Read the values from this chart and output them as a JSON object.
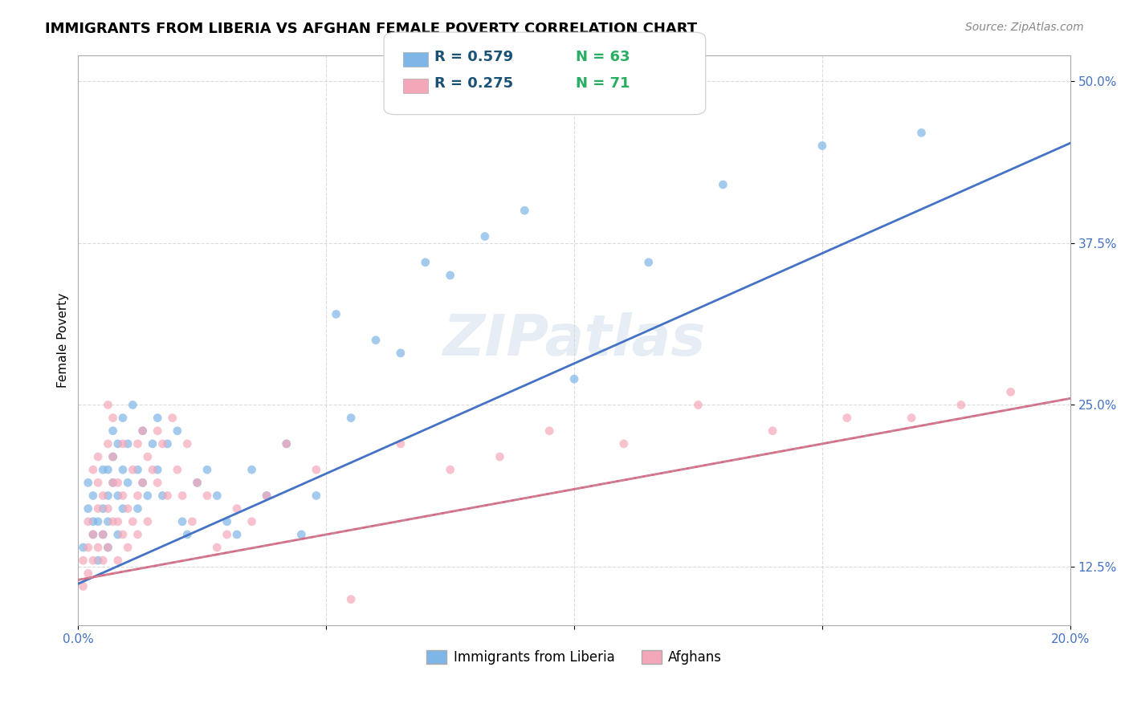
{
  "title": "IMMIGRANTS FROM LIBERIA VS AFGHAN FEMALE POVERTY CORRELATION CHART",
  "source": "Source: ZipAtlas.com",
  "xlabel": "",
  "ylabel": "Female Poverty",
  "watermark": "ZIPatlas",
  "x_min": 0.0,
  "x_max": 0.2,
  "y_min": 0.08,
  "y_max": 0.52,
  "x_ticks": [
    0.0,
    0.05,
    0.1,
    0.15,
    0.2
  ],
  "x_tick_labels": [
    "0.0%",
    "",
    "",
    "",
    "20.0%"
  ],
  "y_ticks": [
    0.125,
    0.25,
    0.375,
    0.5
  ],
  "y_tick_labels": [
    "12.5%",
    "25.0%",
    "37.5%",
    "50.0%"
  ],
  "liberia_color": "#7eb6e8",
  "liberia_color_line": "#4472C4",
  "afghan_color": "#f4a7b9",
  "afghan_color_line": "#E06080",
  "legend_R_liberia": "R = 0.579",
  "legend_N_liberia": "N = 63",
  "legend_R_afghan": "R = 0.275",
  "legend_N_afghan": "N = 71",
  "legend_color_R": "#1a5276",
  "legend_color_N": "#27ae60",
  "liberia_R": 0.579,
  "liberia_N": 63,
  "afghan_R": 0.275,
  "afghan_N": 71,
  "liberia_intercept": 0.112,
  "liberia_slope": 1.7,
  "afghan_intercept": 0.115,
  "afghan_slope": 0.7,
  "background_color": "#ffffff",
  "grid_color": "#cccccc",
  "title_fontsize": 13,
  "axis_label_fontsize": 11,
  "tick_fontsize": 11,
  "source_fontsize": 10,
  "scatter_alpha": 0.7,
  "scatter_size": 60,
  "liberia_x": [
    0.001,
    0.002,
    0.002,
    0.003,
    0.003,
    0.003,
    0.004,
    0.004,
    0.005,
    0.005,
    0.005,
    0.006,
    0.006,
    0.006,
    0.006,
    0.007,
    0.007,
    0.007,
    0.008,
    0.008,
    0.008,
    0.009,
    0.009,
    0.009,
    0.01,
    0.01,
    0.011,
    0.012,
    0.012,
    0.013,
    0.013,
    0.014,
    0.015,
    0.016,
    0.016,
    0.017,
    0.018,
    0.02,
    0.021,
    0.022,
    0.024,
    0.026,
    0.028,
    0.03,
    0.032,
    0.035,
    0.038,
    0.042,
    0.045,
    0.048,
    0.052,
    0.055,
    0.06,
    0.065,
    0.07,
    0.075,
    0.082,
    0.09,
    0.1,
    0.115,
    0.13,
    0.15,
    0.17
  ],
  "liberia_y": [
    0.14,
    0.17,
    0.19,
    0.15,
    0.16,
    0.18,
    0.13,
    0.16,
    0.17,
    0.2,
    0.15,
    0.14,
    0.18,
    0.2,
    0.16,
    0.21,
    0.19,
    0.23,
    0.22,
    0.18,
    0.15,
    0.17,
    0.2,
    0.24,
    0.19,
    0.22,
    0.25,
    0.2,
    0.17,
    0.23,
    0.19,
    0.18,
    0.22,
    0.24,
    0.2,
    0.18,
    0.22,
    0.23,
    0.16,
    0.15,
    0.19,
    0.2,
    0.18,
    0.16,
    0.15,
    0.2,
    0.18,
    0.22,
    0.15,
    0.18,
    0.32,
    0.24,
    0.3,
    0.29,
    0.36,
    0.35,
    0.38,
    0.4,
    0.27,
    0.36,
    0.42,
    0.45,
    0.46
  ],
  "afghan_x": [
    0.001,
    0.001,
    0.002,
    0.002,
    0.002,
    0.003,
    0.003,
    0.003,
    0.004,
    0.004,
    0.004,
    0.004,
    0.005,
    0.005,
    0.005,
    0.006,
    0.006,
    0.006,
    0.006,
    0.007,
    0.007,
    0.007,
    0.007,
    0.008,
    0.008,
    0.008,
    0.009,
    0.009,
    0.009,
    0.01,
    0.01,
    0.011,
    0.011,
    0.012,
    0.012,
    0.012,
    0.013,
    0.013,
    0.014,
    0.014,
    0.015,
    0.016,
    0.016,
    0.017,
    0.018,
    0.019,
    0.02,
    0.021,
    0.022,
    0.023,
    0.024,
    0.026,
    0.028,
    0.03,
    0.032,
    0.035,
    0.038,
    0.042,
    0.048,
    0.055,
    0.065,
    0.075,
    0.085,
    0.095,
    0.11,
    0.125,
    0.14,
    0.155,
    0.168,
    0.178,
    0.188
  ],
  "afghan_y": [
    0.11,
    0.13,
    0.14,
    0.12,
    0.16,
    0.13,
    0.15,
    0.2,
    0.14,
    0.17,
    0.19,
    0.21,
    0.13,
    0.15,
    0.18,
    0.14,
    0.17,
    0.22,
    0.25,
    0.16,
    0.19,
    0.21,
    0.24,
    0.13,
    0.16,
    0.19,
    0.15,
    0.18,
    0.22,
    0.14,
    0.17,
    0.16,
    0.2,
    0.15,
    0.18,
    0.22,
    0.19,
    0.23,
    0.16,
    0.21,
    0.2,
    0.19,
    0.23,
    0.22,
    0.18,
    0.24,
    0.2,
    0.18,
    0.22,
    0.16,
    0.19,
    0.18,
    0.14,
    0.15,
    0.17,
    0.16,
    0.18,
    0.22,
    0.2,
    0.1,
    0.22,
    0.2,
    0.21,
    0.23,
    0.22,
    0.25,
    0.23,
    0.24,
    0.24,
    0.25,
    0.26
  ]
}
